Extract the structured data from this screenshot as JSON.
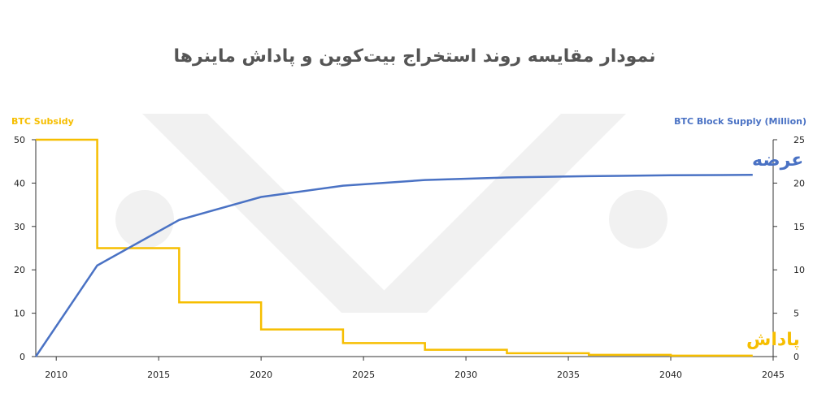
{
  "chart_data": {
    "type": "line",
    "title": "نمودار مقایسه روند استخراج بیت‌کوین و پاداش ماینرها",
    "x_ticks": [
      2010,
      2015,
      2020,
      2025,
      2030,
      2035,
      2040,
      2045
    ],
    "xlim": [
      2009,
      2045
    ],
    "y_left": {
      "label": "BTC Subsidy",
      "ticks": [
        0,
        10,
        20,
        30,
        40,
        50
      ],
      "range": [
        0,
        50
      ],
      "color": "#F6BE00"
    },
    "y_right": {
      "label": "BTC Block Supply (Million)",
      "ticks": [
        0,
        5,
        10,
        15,
        20,
        25
      ],
      "range": [
        0,
        25
      ],
      "color": "#4A72C4"
    },
    "series": [
      {
        "name": "پاداش",
        "axis": "left",
        "style": "step",
        "color": "#F6BE00",
        "x": [
          2009,
          2012,
          2016,
          2020,
          2024,
          2028,
          2032,
          2036,
          2040,
          2044
        ],
        "y": [
          50,
          25,
          12.5,
          6.25,
          3.125,
          1.5625,
          0.78,
          0.39,
          0.2,
          0.2
        ]
      },
      {
        "name": "عرضه",
        "axis": "right",
        "style": "line",
        "color": "#4A72C4",
        "x": [
          2009,
          2012,
          2016,
          2020,
          2024,
          2028,
          2032,
          2036,
          2040,
          2044
        ],
        "y": [
          0,
          10.5,
          15.75,
          18.4,
          19.7,
          20.35,
          20.65,
          20.8,
          20.9,
          20.95
        ]
      }
    ],
    "grid": false
  }
}
